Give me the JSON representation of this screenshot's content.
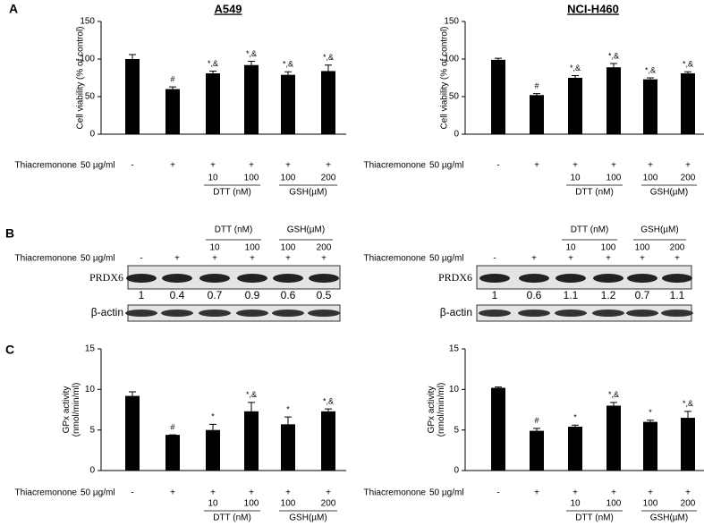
{
  "panel_labels": [
    "A",
    "B",
    "C"
  ],
  "chart_data": [
    {
      "type": "bar",
      "title": "A549",
      "y_label": [
        "Cell viability (% of control)"
      ],
      "ylim": [
        0,
        150
      ],
      "yticks": [
        0,
        50,
        100,
        150
      ],
      "color": "#000000",
      "values": [
        100,
        60,
        81,
        92,
        79,
        84
      ],
      "errors": [
        6,
        3,
        3,
        5,
        4,
        8
      ],
      "annotations": [
        null,
        "#",
        "*,&",
        "*,&",
        "*,&",
        "*,&"
      ],
      "treatment": {
        "label": "Thiacremonone",
        "unit": "50 µg/ml",
        "signs": [
          "-",
          "+",
          "+",
          "+",
          "+",
          "+"
        ]
      },
      "doses": [
        null,
        null,
        "10",
        "100",
        "100",
        "200"
      ],
      "groups": [
        "DTT (nM)",
        "GSH(µM)"
      ]
    },
    {
      "type": "bar",
      "title": "NCI-H460",
      "y_label": [
        "Cell viability (% of control)"
      ],
      "ylim": [
        0,
        150
      ],
      "yticks": [
        0,
        50,
        100,
        150
      ],
      "color": "#000000",
      "values": [
        99,
        52,
        75,
        89,
        73,
        81
      ],
      "errors": [
        2,
        2,
        3,
        5,
        2,
        2
      ],
      "annotations": [
        null,
        "#",
        "*,&",
        "*,&",
        "*,&",
        "*,&"
      ],
      "treatment": {
        "label": "Thiacremonone",
        "unit": "50 µg/ml",
        "signs": [
          "-",
          "+",
          "+",
          "+",
          "+",
          "+"
        ]
      },
      "doses": [
        null,
        null,
        "10",
        "100",
        "100",
        "200"
      ],
      "groups": [
        "DTT (nM)",
        "GSH(µM)"
      ]
    },
    {
      "type": "bar",
      "y_label": [
        "GPx activity",
        "(nmol/min/ml)"
      ],
      "ylim": [
        0,
        15
      ],
      "yticks": [
        0,
        5,
        10,
        15
      ],
      "color": "#000000",
      "values": [
        9.2,
        4.4,
        5.0,
        7.3,
        5.7,
        7.3
      ],
      "errors": [
        0.5,
        0,
        0.7,
        1.1,
        0.9,
        0.3
      ],
      "annotations": [
        null,
        "#",
        "*",
        "*,&",
        "*",
        "*,&"
      ],
      "treatment": {
        "label": "Thiacremonone",
        "unit": "50 µg/ml",
        "signs": [
          "-",
          "+",
          "+",
          "+",
          "+",
          "+"
        ]
      },
      "doses": [
        null,
        null,
        "10",
        "100",
        "100",
        "200"
      ],
      "groups": [
        "DTT (nM)",
        "GSH(µM)"
      ]
    },
    {
      "type": "bar",
      "y_label": [
        "GPx activity",
        "(nmol/min/ml)"
      ],
      "ylim": [
        0,
        15
      ],
      "yticks": [
        0,
        5,
        10,
        15
      ],
      "color": "#000000",
      "values": [
        10.2,
        4.9,
        5.4,
        8.0,
        6.0,
        6.5
      ],
      "errors": [
        0.1,
        0.3,
        0.2,
        0.4,
        0.2,
        0.8
      ],
      "annotations": [
        null,
        "#",
        "*",
        "*,&",
        "*",
        "*,&"
      ],
      "treatment": {
        "label": "Thiacremonone",
        "unit": "50 µg/ml",
        "signs": [
          "-",
          "+",
          "+",
          "+",
          "+",
          "+"
        ]
      },
      "doses": [
        null,
        null,
        "10",
        "100",
        "100",
        "200"
      ],
      "groups": [
        "DTT (nM)",
        "GSH(µM)"
      ]
    }
  ],
  "blots": [
    {
      "treatment": {
        "label": "Thiacremonone",
        "unit": "50 µg/ml",
        "signs": [
          "-",
          "+",
          "+",
          "+",
          "+",
          "+"
        ]
      },
      "doses": [
        null,
        null,
        "10",
        "100",
        "100",
        "200"
      ],
      "groups": [
        "DTT (nM)",
        "GSH(µM)"
      ],
      "protein": "PRDX6",
      "ratios": [
        1,
        0.4,
        0.7,
        0.9,
        0.6,
        0.5
      ],
      "loading": "β-actin"
    },
    {
      "treatment": {
        "label": "Thiacremonone",
        "unit": "50 µg/ml",
        "signs": [
          "-",
          "+",
          "+",
          "+",
          "+",
          "+"
        ]
      },
      "doses": [
        null,
        null,
        "10",
        "100",
        "100",
        "200"
      ],
      "groups": [
        "DTT (nM)",
        "GSH(µM)"
      ],
      "protein": "PRDX6",
      "ratios": [
        1,
        0.6,
        1.1,
        1.2,
        0.7,
        1.1
      ],
      "loading": "β-actin"
    }
  ]
}
